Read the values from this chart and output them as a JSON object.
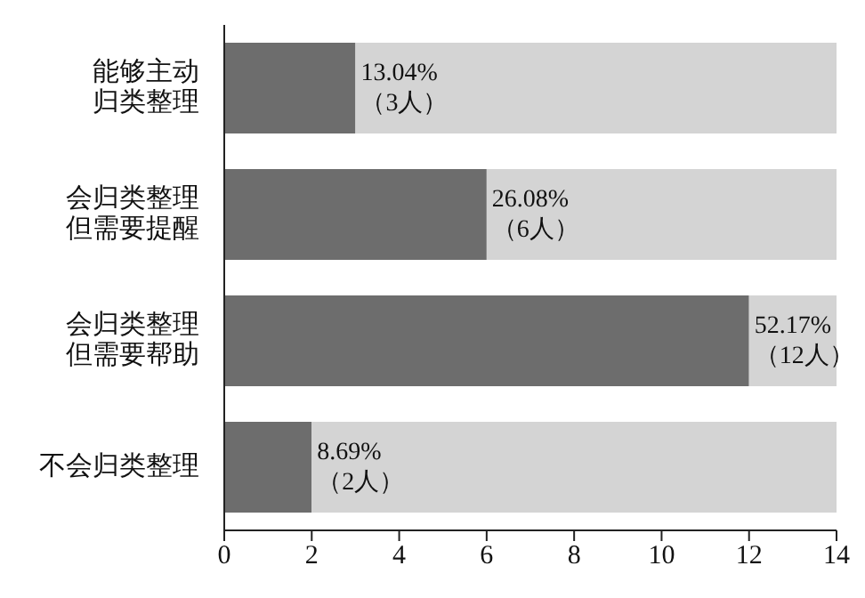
{
  "chart_data": {
    "type": "bar",
    "orientation": "horizontal",
    "stacked": true,
    "categories": [
      "能够主动归类整理",
      "会归类整理但需要提醒",
      "会归类整理但需要帮助",
      "不会归类整理"
    ],
    "series": [
      {
        "color": "#6d6d6d",
        "values": [
          3,
          6,
          12,
          2
        ],
        "value_labels": [
          "13.04%\n（3人）",
          "26.08%\n（6人）",
          "52.17%\n（12人）",
          "8.69%\n（2人）"
        ]
      },
      {
        "color": "#d4d4d4",
        "values": [
          11,
          8,
          2,
          12
        ]
      }
    ],
    "xlim": [
      0,
      14
    ],
    "xticks": [
      0,
      2,
      4,
      6,
      8,
      10,
      12,
      14
    ],
    "grid": false,
    "legend": false
  }
}
